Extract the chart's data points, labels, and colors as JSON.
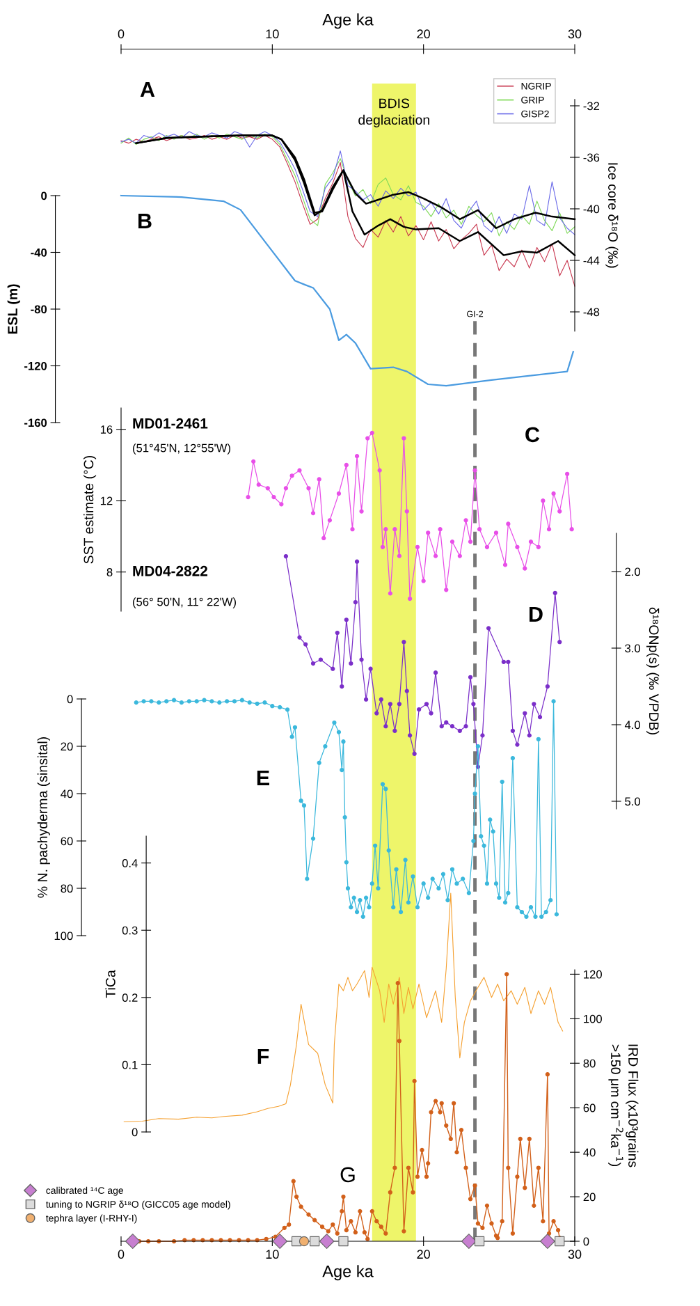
{
  "chart_data": [
    {
      "type": "line",
      "xlabel": "Age ka",
      "xlim": [
        0,
        30
      ],
      "xticks": [
        0,
        10,
        20,
        30
      ],
      "ylabel": "Ice core δ¹⁸O (‰)",
      "ylim": [
        -49.5,
        -31.5
      ],
      "yticks": [
        -32,
        -36,
        -40,
        -44,
        -48
      ],
      "legend": "top right",
      "marker": "none",
      "annotations": [
        "A"
      ],
      "bands": [
        {
          "axis": "x",
          "from": 16.6,
          "to": 19.5,
          "label": "BDIS\ndeglaciation",
          "color": "#eef56a"
        }
      ],
      "x": [
        0,
        0.5,
        1,
        1.5,
        2,
        2.5,
        3,
        3.5,
        4,
        4.5,
        5,
        5.5,
        6,
        6.5,
        7,
        7.5,
        8,
        8.5,
        9,
        9.5,
        10,
        10.5,
        11,
        11.5,
        12,
        12.5,
        13,
        13.5,
        14,
        14.5,
        15,
        15.5,
        16,
        16.5,
        17,
        17.5,
        18,
        18.5,
        19,
        19.5,
        20,
        20.5,
        21,
        21.5,
        22,
        22.5,
        23,
        23.5,
        24,
        24.5,
        25,
        25.5,
        26,
        26.5,
        27,
        27.5,
        28,
        28.5,
        29,
        29.5,
        30
      ],
      "series": [
        {
          "name": "NGRIP",
          "color": "#c8374f",
          "values": [
            -34.7,
            -34.9,
            -34.6,
            -34.8,
            -34.6,
            -34.4,
            -34.7,
            -34.5,
            -34.3,
            -34.6,
            -34.5,
            -34.3,
            -34.6,
            -34.4,
            -34.6,
            -34.3,
            -34.5,
            -34.4,
            -34.6,
            -34.3,
            -34.6,
            -35.2,
            -36.5,
            -37.9,
            -39.6,
            -41.2,
            -40.8,
            -39.2,
            -38.0,
            -36.4,
            -40.6,
            -42.3,
            -43.0,
            -41.6,
            -42.2,
            -40.9,
            -41.8,
            -40.6,
            -42.1,
            -41.3,
            -42.4,
            -41.0,
            -42.5,
            -41.6,
            -43.1,
            -42.4,
            -41.9,
            -41.2,
            -43.6,
            -42.8,
            -44.8,
            -43.9,
            -44.5,
            -43.2,
            -44.6,
            -43.0,
            -44.1,
            -42.7,
            -45.2,
            -44.0,
            -46.0
          ]
        },
        {
          "name": "GRIP",
          "color": "#7ed957",
          "values": [
            -34.9,
            -34.5,
            -35.0,
            -34.6,
            -34.4,
            -34.7,
            -34.3,
            -34.6,
            -34.3,
            -34.5,
            -34.2,
            -34.6,
            -34.3,
            -34.5,
            -34.2,
            -34.4,
            -34.6,
            -34.3,
            -34.5,
            -34.2,
            -34.4,
            -35.0,
            -36.2,
            -37.4,
            -39.1,
            -40.8,
            -41.3,
            -38.1,
            -37.2,
            -36.1,
            -37.8,
            -39.0,
            -38.5,
            -39.6,
            -38.1,
            -37.6,
            -38.9,
            -39.3,
            -38.2,
            -39.5,
            -39.8,
            -40.6,
            -39.6,
            -40.7,
            -40.1,
            -41.2,
            -39.8,
            -40.5,
            -41.0,
            -40.3,
            -42.1,
            -41.0,
            -41.6,
            -40.5,
            -41.2,
            -39.4,
            -40.9,
            -41.7,
            -40.3,
            -41.9,
            -41.4
          ]
        },
        {
          "name": "GISP2",
          "color": "#6a6ae8",
          "values": [
            -34.8,
            -34.6,
            -34.9,
            -34.3,
            -34.5,
            -34.1,
            -34.4,
            -34.2,
            -34.5,
            -34.0,
            -34.3,
            -34.4,
            -34.1,
            -34.3,
            -34.5,
            -34.0,
            -34.2,
            -35.2,
            -34.3,
            -34.0,
            -34.3,
            -34.8,
            -35.8,
            -36.9,
            -38.5,
            -40.2,
            -40.6,
            -38.4,
            -37.6,
            -35.5,
            -38.2,
            -38.6,
            -39.3,
            -38.9,
            -39.8,
            -38.6,
            -39.2,
            -38.4,
            -39.0,
            -38.7,
            -40.1,
            -39.5,
            -40.4,
            -39.2,
            -40.9,
            -41.5,
            -40.2,
            -39.4,
            -41.3,
            -41.8,
            -40.6,
            -41.9,
            -40.4,
            -40.8,
            -38.2,
            -40.9,
            -41.3,
            -37.9,
            -40.7,
            -41.5,
            -42.0
          ]
        },
        {
          "color": "#000000",
          "x": [
            1,
            3,
            5,
            8,
            10,
            10.6,
            11.5,
            12.1,
            12.8,
            13.3,
            14,
            14.7,
            15.5,
            16.2,
            17,
            18,
            19,
            20,
            21.2,
            22.4,
            23.6,
            24.8,
            26,
            27.4,
            28.5,
            30
          ],
          "values": [
            -34.9,
            -34.5,
            -34.4,
            -34.3,
            -34.3,
            -34.6,
            -36.0,
            -37.7,
            -40.3,
            -40.2,
            -38.5,
            -37.0,
            -38.8,
            -39.6,
            -39.3,
            -38.9,
            -38.7,
            -39.2,
            -39.9,
            -40.8,
            -40.1,
            -41.5,
            -40.8,
            -40.3,
            -40.6,
            -40.8
          ]
        },
        {
          "color": "#000000",
          "x": [
            1,
            3,
            5,
            8,
            10,
            10.6,
            11.5,
            12.1,
            12.8,
            13.3,
            14,
            14.7,
            15.3,
            16.1,
            17,
            17.8,
            18.7,
            19.5,
            21,
            22.4,
            23.6,
            25.3,
            26.5,
            27.5,
            28.9,
            30
          ],
          "values": [
            -34.9,
            -34.5,
            -34.4,
            -34.3,
            -34.3,
            -34.6,
            -36.2,
            -38.0,
            -40.5,
            -40.1,
            -38.3,
            -37.0,
            -40.2,
            -42.0,
            -41.3,
            -40.8,
            -41.4,
            -41.6,
            -41.5,
            -42.5,
            -41.8,
            -43.6,
            -43.3,
            -43.4,
            -42.5,
            -43.6
          ]
        }
      ]
    },
    {
      "type": "line",
      "xlim": [
        0,
        30
      ],
      "ylabel": "ESL (m)",
      "ylim": [
        -160,
        0
      ],
      "ref_lines": [
        {
          "axis": "x",
          "value": 23.4,
          "label": "GI-2",
          "color": "#777777",
          "line_style": "dashed"
        }
      ],
      "yticks": [
        0,
        -40,
        -80,
        -120,
        -160
      ],
      "tick_labels": "y",
      "marker": "none",
      "annotations": [
        "B"
      ],
      "series": [
        {
          "color": "#4a9be0",
          "x": [
            0,
            4,
            6.8,
            7.9,
            9.7,
            11.5,
            12.2,
            12.7,
            13.8,
            14.4,
            14.9,
            15.5,
            16.5,
            18.0,
            18.9,
            20.3,
            21.5,
            24.5,
            29.5,
            29.9
          ],
          "values": [
            0,
            -1,
            -4,
            -10,
            -35,
            -60,
            -63,
            -65,
            -80,
            -102,
            -98,
            -104,
            -122,
            -121,
            -124,
            -133,
            -134,
            -130,
            -124,
            -110
          ]
        }
      ]
    },
    {
      "type": "line",
      "xlim": [
        0,
        30
      ],
      "ylabel": "SST estimate (°C)",
      "ylim": [
        5.8,
        17.2
      ],
      "ref_lines": [
        {
          "axis": "x",
          "value": 23.4,
          "color": "#777777",
          "line_style": "dashed"
        }
      ],
      "yticks": [
        8,
        12,
        16
      ],
      "tick_labels": "y",
      "marker": "circle",
      "annotations": [
        "C",
        "MD01-2461",
        "(51°45'N, 12°55'W)"
      ],
      "series": [
        {
          "color": "#e84fe8",
          "x": [
            8.4,
            8.75,
            9.1,
            9.7,
            10.1,
            10.6,
            10.9,
            11.3,
            11.8,
            12.4,
            12.7,
            13.1,
            13.4,
            13.8,
            14.4,
            14.9,
            15.3,
            15.6,
            15.9,
            16.3,
            16.6,
            17.1,
            17.3,
            17.5,
            17.8,
            18.1,
            18.4,
            18.7,
            18.9,
            19.1,
            19.6,
            20.0,
            20.3,
            20.8,
            21.1,
            21.5,
            21.9,
            22.4,
            22.8,
            23.1,
            23.4,
            23.7,
            24.2,
            24.8,
            25.4,
            25.6,
            26.2,
            26.7,
            27.1,
            27.6,
            27.9,
            28.3,
            28.6,
            29.0,
            29.5,
            29.8
          ],
          "values": [
            12.2,
            14.2,
            12.9,
            12.7,
            12.2,
            11.8,
            12.7,
            13.4,
            13.7,
            12.7,
            11.3,
            13.2,
            9.9,
            10.9,
            12.4,
            14.0,
            10.4,
            14.5,
            11.4,
            15.5,
            15.8,
            13.7,
            9.4,
            10.4,
            6.8,
            10.4,
            8.9,
            15.5,
            11.4,
            6.5,
            9.4,
            7.5,
            10.2,
            8.9,
            10.4,
            7.0,
            9.7,
            8.9,
            10.9,
            9.7,
            13.7,
            10.4,
            9.4,
            10.2,
            8.4,
            10.7,
            9.4,
            8.2,
            9.7,
            9.4,
            12.0,
            10.4,
            12.4,
            11.4,
            13.5,
            10.4
          ]
        }
      ]
    },
    {
      "type": "line",
      "xlim": [
        0,
        30
      ],
      "ylabel": "δ¹⁸ONp(s) (‰ VPDB)",
      "ylim": [
        5.1,
        1.5
      ],
      "ref_lines": [
        {
          "axis": "x",
          "value": 23.4,
          "color": "#777777",
          "line_style": "dashed"
        }
      ],
      "yticks": [
        {
          "value": 2,
          "label": "2.0"
        },
        {
          "value": 3,
          "label": "3.0"
        },
        {
          "value": 4,
          "label": "4.0"
        },
        {
          "value": 5,
          "label": "5.0"
        }
      ],
      "tick_labels": "y",
      "marker": "circle",
      "annotations": [
        "D",
        "MD04-2822",
        "(56° 50'N, 11° 22'W)"
      ],
      "series": [
        {
          "color": "#7b2fc9",
          "x": [
            10.9,
            11.8,
            12.2,
            12.7,
            13.2,
            14.0,
            14.3,
            14.6,
            14.9,
            15.2,
            15.5,
            15.6,
            15.9,
            16.2,
            16.5,
            16.9,
            17.2,
            17.5,
            17.8,
            18.1,
            18.4,
            18.7,
            18.9,
            19.1,
            19.4,
            19.7,
            20.2,
            20.5,
            20.8,
            21.2,
            21.5,
            21.9,
            22.4,
            22.8,
            23.1,
            23.3,
            23.6,
            23.9,
            24.3,
            25.3,
            25.6,
            25.9,
            26.2,
            26.7,
            27.0,
            27.3,
            27.7,
            28.2,
            28.7,
            29.0
          ],
          "values": [
            1.8,
            2.86,
            2.95,
            3.2,
            3.15,
            3.27,
            2.8,
            3.5,
            2.63,
            3.2,
            2.4,
            1.87,
            3.15,
            3.67,
            3.27,
            3.85,
            3.67,
            4.02,
            3.73,
            4.08,
            3.73,
            2.92,
            3.56,
            4.14,
            4.38,
            3.8,
            3.73,
            3.85,
            3.32,
            4.02,
            3.97,
            4.02,
            4.08,
            4.02,
            3.38,
            3.73,
            4.55,
            4.14,
            2.74,
            3.18,
            3.18,
            4.08,
            4.26,
            3.85,
            4.14,
            3.73,
            3.9,
            3.5,
            2.28,
            2.92
          ]
        }
      ]
    },
    {
      "type": "line",
      "xlim": [
        0,
        30
      ],
      "ylabel": "% N. pachyderma (sinsital)",
      "ylim": [
        100,
        0
      ],
      "ref_lines": [
        {
          "axis": "x",
          "value": 23.4,
          "color": "#777777",
          "line_style": "dashed"
        }
      ],
      "yticks": [
        0,
        20,
        40,
        60,
        80,
        100
      ],
      "tick_labels": "y",
      "marker": "circle",
      "annotations": [
        "E"
      ],
      "series": [
        {
          "color": "#3bb8dc",
          "x": [
            1.0,
            1.5,
            2.0,
            2.5,
            3.0,
            3.5,
            4.0,
            4.5,
            5.0,
            5.5,
            6.0,
            6.5,
            7.0,
            7.5,
            8.0,
            8.5,
            9.0,
            9.5,
            10.0,
            10.5,
            11.0,
            11.3,
            11.5,
            11.9,
            12.1,
            12.3,
            12.7,
            13.1,
            13.5,
            14.1,
            14.4,
            14.6,
            14.7,
            14.8,
            14.9,
            15.0,
            15.2,
            15.4,
            15.6,
            15.8,
            16.0,
            16.2,
            16.4,
            16.6,
            16.8,
            17.0,
            17.3,
            17.5,
            17.7,
            18.0,
            18.2,
            18.5,
            18.8,
            19.0,
            19.3,
            19.6,
            20.0,
            20.3,
            20.6,
            21.0,
            21.3,
            21.6,
            21.9,
            22.2,
            22.6,
            23.0,
            23.3,
            23.4,
            23.6,
            23.8,
            24.0,
            24.2,
            24.4,
            24.6,
            24.8,
            25.0,
            25.2,
            25.4,
            25.6,
            25.9,
            26.2,
            26.5,
            26.8,
            27.1,
            27.4,
            27.6,
            27.8,
            28.1,
            28.4,
            28.6,
            28.8
          ],
          "values": [
            1.5,
            1,
            1,
            1.5,
            1,
            0.5,
            1.5,
            1,
            1,
            0.5,
            1,
            1.5,
            1,
            1,
            0.5,
            1.5,
            2,
            1.5,
            3,
            3.5,
            4.5,
            16,
            12,
            43,
            45,
            76,
            59,
            27,
            20,
            10,
            14,
            30,
            18,
            50,
            69,
            80,
            88,
            84,
            90,
            85,
            92,
            84,
            88,
            78,
            62,
            80,
            36,
            38,
            64,
            88,
            72,
            90,
            68,
            86,
            75,
            88,
            78,
            84,
            76,
            80,
            74,
            85,
            72,
            78,
            76,
            82,
            60,
            40,
            20,
            58,
            62,
            78,
            51,
            56,
            78,
            84,
            35,
            86,
            82,
            25,
            88,
            90,
            92,
            88,
            92,
            17,
            92,
            90,
            85,
            1,
            91
          ]
        }
      ]
    },
    {
      "type": "line",
      "xlim": [
        0,
        30
      ],
      "ylabel": "TiCa",
      "ylim": [
        0,
        0.44
      ],
      "ref_lines": [
        {
          "axis": "x",
          "value": 23.4,
          "color": "#777777",
          "line_style": "dashed"
        }
      ],
      "yticks": [
        0,
        0.1,
        0.2,
        0.3,
        0.4
      ],
      "tick_labels": "y",
      "marker": "none",
      "annotations": [
        "F"
      ],
      "series": [
        {
          "color": "#f5a030",
          "x": [
            0.2,
            1.4,
            2.5,
            3.8,
            5.0,
            6.0,
            6.8,
            8.0,
            9.0,
            9.7,
            10.4,
            10.9,
            11.2,
            11.6,
            11.9,
            12.4,
            13.0,
            13.5,
            14.0,
            14.1,
            14.4,
            14.7,
            15.0,
            15.3,
            15.6,
            16.1,
            16.4,
            16.6,
            17.1,
            17.4,
            17.7,
            18.0,
            18.4,
            18.7,
            19.0,
            19.3,
            19.7,
            20.2,
            20.5,
            20.8,
            21.2,
            21.5,
            21.8,
            22.1,
            22.4,
            22.7,
            23.1,
            23.6,
            24.0,
            24.5,
            24.9,
            25.3,
            25.8,
            26.2,
            26.7,
            27.1,
            27.6,
            28.0,
            28.4,
            28.9,
            29.2
          ],
          "values": [
            0.015,
            0.016,
            0.02,
            0.019,
            0.022,
            0.021,
            0.023,
            0.025,
            0.03,
            0.035,
            0.038,
            0.042,
            0.07,
            0.13,
            0.19,
            0.13,
            0.117,
            0.07,
            0.043,
            0.13,
            0.22,
            0.21,
            0.23,
            0.21,
            0.22,
            0.24,
            0.2,
            0.245,
            0.21,
            0.163,
            0.22,
            0.19,
            0.23,
            0.176,
            0.215,
            0.183,
            0.22,
            0.17,
            0.19,
            0.21,
            0.163,
            0.243,
            0.355,
            0.2,
            0.11,
            0.163,
            0.195,
            0.215,
            0.23,
            0.2,
            0.22,
            0.195,
            0.21,
            0.19,
            0.215,
            0.176,
            0.21,
            0.19,
            0.215,
            0.163,
            0.15
          ]
        }
      ]
    },
    {
      "type": "line",
      "xlabel": "Age ka",
      "xlim": [
        0,
        30
      ],
      "xticks": [
        0,
        10,
        20,
        30
      ],
      "ylabel": "IRD Flux (x10³grains\n>150 μm cm$^{−2}$ka$^{−1}$)",
      "ylim": [
        0,
        122
      ],
      "ref_lines": [
        {
          "axis": "x",
          "value": 23.4,
          "color": "#777777",
          "line_style": "dashed"
        }
      ],
      "yticks": [
        0,
        20,
        40,
        60,
        80,
        100,
        120
      ],
      "marker": "circle",
      "legend": "bottom left",
      "annotations": [
        "G"
      ],
      "series": [
        {
          "color": "#d2601a",
          "x": [
            1.2,
            1.8,
            2.5,
            3.5,
            4.2,
            4.8,
            5.4,
            6.0,
            6.6,
            7.2,
            7.8,
            8.4,
            9.0,
            9.6,
            10.2,
            10.8,
            11.1,
            11.4,
            11.6,
            11.9,
            12.4,
            12.8,
            13.3,
            13.7,
            14.0,
            14.3,
            14.6,
            14.7,
            14.9,
            15.2,
            15.5,
            15.8,
            16.1,
            16.3,
            16.6,
            16.9,
            17.2,
            17.5,
            17.8,
            18.1,
            18.3,
            18.4,
            18.7,
            19.0,
            19.3,
            19.4,
            19.6,
            19.9,
            20.2,
            20.3,
            20.5,
            20.8,
            21.1,
            21.2,
            21.5,
            21.8,
            22.0,
            22.2,
            22.5,
            22.8,
            23.1,
            23.4,
            23.6,
            23.9,
            24.2,
            24.5,
            24.8,
            24.9,
            25.2,
            25.5,
            25.6,
            25.9,
            26.2,
            26.4,
            26.7,
            27.0,
            27.3,
            27.6,
            27.9,
            28.2,
            28.3,
            28.6,
            28.9,
            29.0
          ],
          "values": [
            0,
            0,
            0,
            0,
            0.5,
            0.5,
            0.5,
            0.5,
            0.5,
            0.5,
            0.5,
            0.5,
            0.5,
            1,
            2,
            6,
            7.5,
            27,
            20,
            15.5,
            12,
            9.5,
            6.5,
            4.5,
            7.5,
            3.5,
            13.5,
            20,
            5,
            9,
            4,
            13.5,
            4,
            1,
            13.5,
            9,
            6.5,
            3.5,
            22,
            33,
            116,
            90,
            4.5,
            33,
            22,
            72,
            29,
            41,
            29,
            35,
            58,
            63,
            58,
            62,
            52,
            46,
            62,
            40,
            50,
            33,
            19,
            25,
            8,
            6,
            16,
            8,
            2.5,
            1.5,
            9,
            120,
            33,
            3.5,
            29,
            46,
            24,
            46,
            16,
            33,
            9,
            75,
            3.5,
            9,
            5,
            1.5
          ]
        },
        {
          "name": "calibrated ¹⁴C age",
          "type": "scatter",
          "marker": "diamond",
          "color": "#c77fd0",
          "x": [
            0.77,
            10.5,
            13.6,
            23.0,
            28.2
          ],
          "values": [
            0,
            0,
            0,
            0,
            0
          ]
        },
        {
          "name": "tuning to NGRIP δ¹⁸O (GICC05 age model)",
          "type": "scatter",
          "marker": "square",
          "color": "#dcdcdc",
          "x": [
            11.6,
            12.8,
            14.7,
            23.7,
            29.0
          ],
          "values": [
            0,
            0,
            0,
            0,
            0
          ]
        },
        {
          "name": "tephra layer (I-RHY-I)",
          "type": "scatter",
          "marker": "circle",
          "color": "#f0b070",
          "x": [
            12.1
          ],
          "values": [
            0
          ]
        }
      ]
    }
  ]
}
